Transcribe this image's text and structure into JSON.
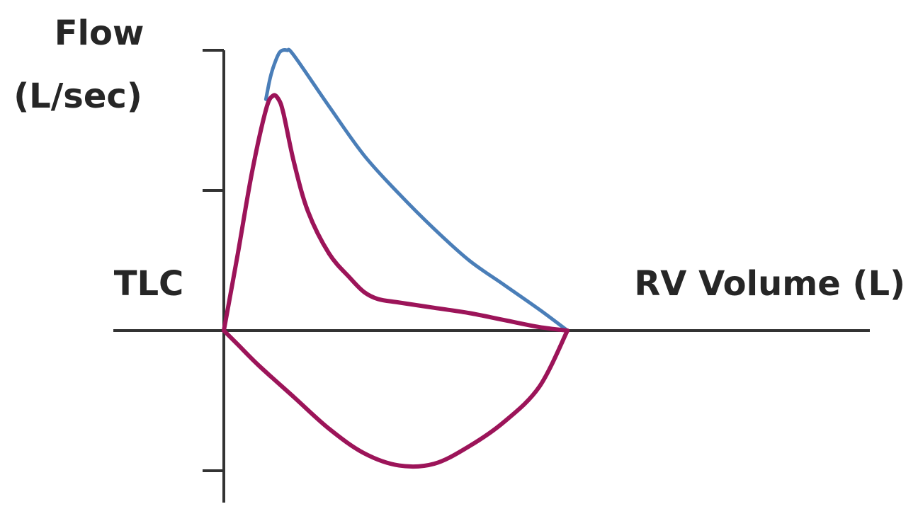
{
  "chart_data": {
    "type": "line",
    "ylabel_line1": "Flow",
    "ylabel_line2": "(L/sec)",
    "x_left_label": "TLC",
    "x_right_label": "RV Volume (L)",
    "xlim": [
      0,
      5
    ],
    "ylim": [
      -4,
      8
    ],
    "y_ticks": [
      -4,
      4,
      8
    ],
    "grid": false,
    "colors": {
      "normal": "#4a7eb8",
      "obstructive": "#9c1459",
      "axis": "#333333"
    },
    "series": [
      {
        "key": "normal",
        "x": [
          0.6,
          0.66,
          0.72,
          0.8,
          0.9,
          1.0,
          1.5,
          2.0,
          2.5,
          3.0,
          3.5,
          4.0,
          4.5,
          4.9
        ],
        "y": [
          6.6,
          7.2,
          7.6,
          7.95,
          8.0,
          7.85,
          6.4,
          5.0,
          3.9,
          2.9,
          2.0,
          1.3,
          0.6,
          0.0
        ]
      },
      {
        "key": "obstructive",
        "x": [
          0.0,
          0.2,
          0.4,
          0.6,
          0.7,
          0.78,
          0.85,
          1.0,
          1.2,
          1.5,
          1.8,
          2.0,
          2.2,
          2.5,
          3.0,
          3.5,
          4.0,
          4.5,
          4.9
        ],
        "y": [
          0.0,
          2.2,
          4.5,
          6.3,
          6.7,
          6.6,
          6.2,
          4.8,
          3.4,
          2.2,
          1.5,
          1.1,
          0.9,
          0.8,
          0.65,
          0.5,
          0.3,
          0.1,
          0.0
        ]
      },
      {
        "key": "inspiratory",
        "x": [
          0.0,
          0.2,
          0.5,
          1.0,
          1.5,
          2.0,
          2.5,
          3.0,
          3.5,
          4.0,
          4.5,
          4.9
        ],
        "y": [
          0.0,
          -0.4,
          -1.0,
          -1.9,
          -2.8,
          -3.5,
          -3.85,
          -3.8,
          -3.3,
          -2.6,
          -1.6,
          0.0
        ]
      }
    ]
  }
}
